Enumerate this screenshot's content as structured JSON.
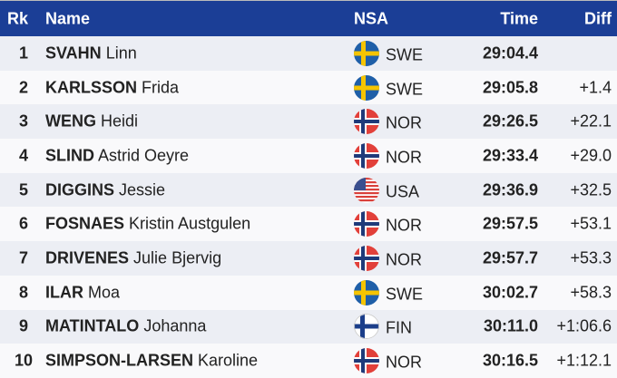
{
  "header": {
    "rank": "Rk",
    "name": "Name",
    "nsa": "NSA",
    "time": "Time",
    "diff": "Diff"
  },
  "colors": {
    "header_bg": "#1b3e96",
    "row_alt": "#eceef4"
  },
  "rows": [
    {
      "rank": "1",
      "surname": "SVAHN",
      "firstname": "Linn",
      "nsa": "SWE",
      "flag": "sweden-flag-icon",
      "time": "29:04.4",
      "diff": ""
    },
    {
      "rank": "2",
      "surname": "KARLSSON",
      "firstname": "Frida",
      "nsa": "SWE",
      "flag": "sweden-flag-icon",
      "time": "29:05.8",
      "diff": "+1.4"
    },
    {
      "rank": "3",
      "surname": "WENG",
      "firstname": "Heidi",
      "nsa": "NOR",
      "flag": "norway-flag-icon",
      "time": "29:26.5",
      "diff": "+22.1"
    },
    {
      "rank": "4",
      "surname": "SLIND",
      "firstname": "Astrid Oeyre",
      "nsa": "NOR",
      "flag": "norway-flag-icon",
      "time": "29:33.4",
      "diff": "+29.0"
    },
    {
      "rank": "5",
      "surname": "DIGGINS",
      "firstname": "Jessie",
      "nsa": "USA",
      "flag": "usa-flag-icon",
      "time": "29:36.9",
      "diff": "+32.5"
    },
    {
      "rank": "6",
      "surname": "FOSNAES",
      "firstname": "Kristin Austgulen",
      "nsa": "NOR",
      "flag": "norway-flag-icon",
      "time": "29:57.5",
      "diff": "+53.1"
    },
    {
      "rank": "7",
      "surname": "DRIVENES",
      "firstname": "Julie Bjervig",
      "nsa": "NOR",
      "flag": "norway-flag-icon",
      "time": "29:57.7",
      "diff": "+53.3"
    },
    {
      "rank": "8",
      "surname": "ILAR",
      "firstname": "Moa",
      "nsa": "SWE",
      "flag": "sweden-flag-icon",
      "time": "30:02.7",
      "diff": "+58.3"
    },
    {
      "rank": "9",
      "surname": "MATINTALO",
      "firstname": "Johanna",
      "nsa": "FIN",
      "flag": "finland-flag-icon",
      "time": "30:11.0",
      "diff": "+1:06.6"
    },
    {
      "rank": "10",
      "surname": "SIMPSON-LARSEN",
      "firstname": "Karoline",
      "nsa": "NOR",
      "flag": "norway-flag-icon",
      "time": "30:16.5",
      "diff": "+1:12.1"
    }
  ]
}
